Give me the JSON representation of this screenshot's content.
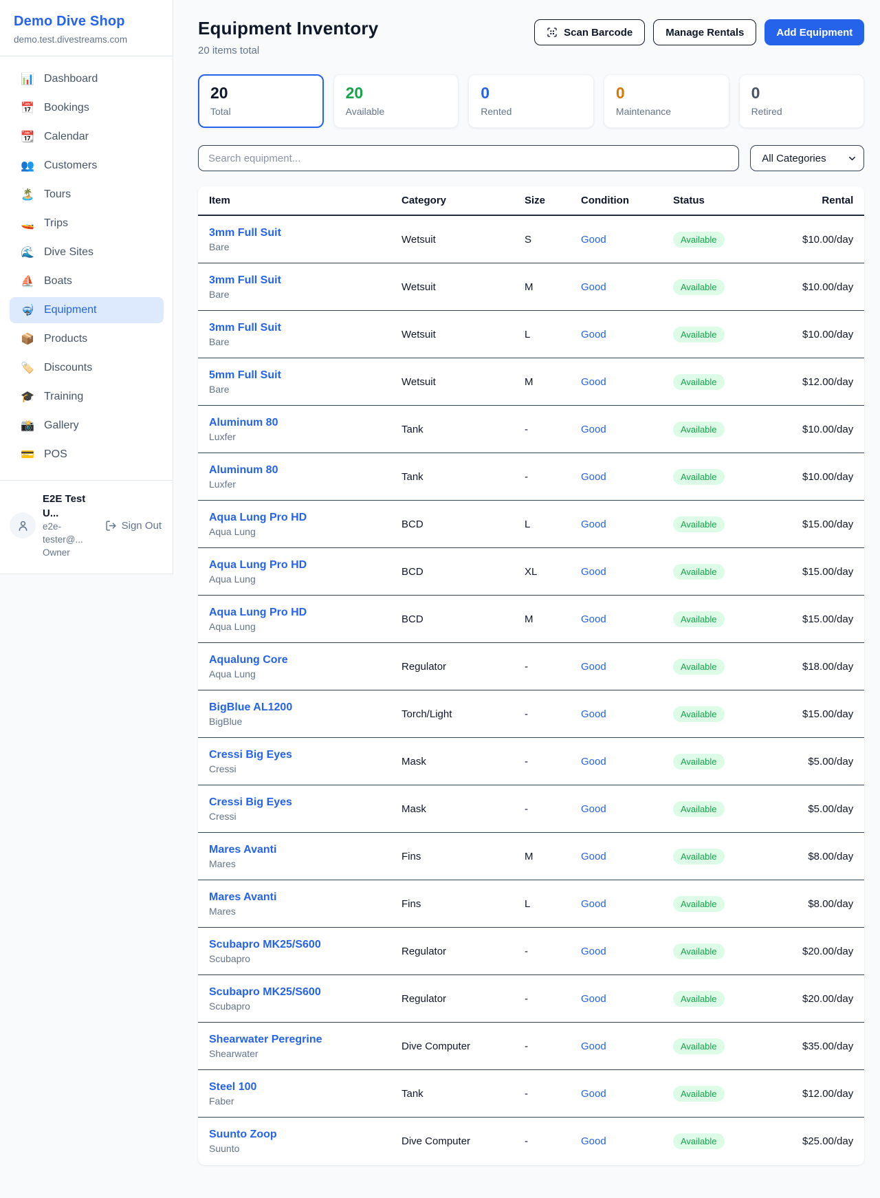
{
  "colors": {
    "accent_blue": "#2563eb",
    "active_item_bg": "#ddeafd",
    "green": "#16a34a",
    "green_badge_bg": "#dcfce7",
    "orange": "#d97706",
    "gray": "#64748b",
    "dark": "#0f172a",
    "page_bg": "#f8fafc"
  },
  "brand": {
    "name": "Demo Dive Shop",
    "domain": "demo.test.divestreams.com"
  },
  "sidebar": {
    "items": [
      {
        "label": "Dashboard",
        "icon_name": "bar-chart-icon",
        "icon_glyph": "📊",
        "active": false
      },
      {
        "label": "Bookings",
        "icon_name": "calendar-date-icon",
        "icon_glyph": "📅",
        "active": false
      },
      {
        "label": "Calendar",
        "icon_name": "tear-off-calendar-icon",
        "icon_glyph": "📆",
        "active": false
      },
      {
        "label": "Customers",
        "icon_name": "people-icon",
        "icon_glyph": "👥",
        "active": false
      },
      {
        "label": "Tours",
        "icon_name": "island-icon",
        "icon_glyph": "🏝️",
        "active": false
      },
      {
        "label": "Trips",
        "icon_name": "speedboat-icon",
        "icon_glyph": "🚤",
        "active": false
      },
      {
        "label": "Dive Sites",
        "icon_name": "wave-icon",
        "icon_glyph": "🌊",
        "active": false
      },
      {
        "label": "Boats",
        "icon_name": "sailboat-icon",
        "icon_glyph": "⛵",
        "active": false
      },
      {
        "label": "Equipment",
        "icon_name": "diving-mask-icon",
        "icon_glyph": "🤿",
        "active": true
      },
      {
        "label": "Products",
        "icon_name": "package-icon",
        "icon_glyph": "📦",
        "active": false
      },
      {
        "label": "Discounts",
        "icon_name": "tag-icon",
        "icon_glyph": "🏷️",
        "active": false
      },
      {
        "label": "Training",
        "icon_name": "graduation-cap-icon",
        "icon_glyph": "🎓",
        "active": false
      },
      {
        "label": "Gallery",
        "icon_name": "camera-icon",
        "icon_glyph": "📸",
        "active": false
      },
      {
        "label": "POS",
        "icon_name": "credit-card-icon",
        "icon_glyph": "💳",
        "active": false
      }
    ]
  },
  "user": {
    "name": "E2E Test U...",
    "email": "e2e-tester@...",
    "role": "Owner",
    "sign_out_label": "Sign Out"
  },
  "header": {
    "title": "Equipment Inventory",
    "subtitle": "20 items total",
    "scan_barcode_label": "Scan Barcode",
    "manage_rentals_label": "Manage Rentals",
    "add_equipment_label": "Add Equipment"
  },
  "stats": {
    "cards": [
      {
        "value": "20",
        "label": "Total",
        "color": "#0f172a",
        "selected": true
      },
      {
        "value": "20",
        "label": "Available",
        "color": "#16a34a",
        "selected": false
      },
      {
        "value": "0",
        "label": "Rented",
        "color": "#2563eb",
        "selected": false
      },
      {
        "value": "0",
        "label": "Maintenance",
        "color": "#d97706",
        "selected": false
      },
      {
        "value": "0",
        "label": "Retired",
        "color": "#475569",
        "selected": false
      }
    ]
  },
  "filters": {
    "search_placeholder": "Search equipment...",
    "category_selected": "All Categories"
  },
  "table": {
    "columns": [
      "Item",
      "Category",
      "Size",
      "Condition",
      "Status",
      "Rental"
    ],
    "rows": [
      {
        "name": "3mm Full Suit",
        "brand": "Bare",
        "category": "Wetsuit",
        "size": "S",
        "condition": "Good",
        "status": "Available",
        "rental": "$10.00/day"
      },
      {
        "name": "3mm Full Suit",
        "brand": "Bare",
        "category": "Wetsuit",
        "size": "M",
        "condition": "Good",
        "status": "Available",
        "rental": "$10.00/day"
      },
      {
        "name": "3mm Full Suit",
        "brand": "Bare",
        "category": "Wetsuit",
        "size": "L",
        "condition": "Good",
        "status": "Available",
        "rental": "$10.00/day"
      },
      {
        "name": "5mm Full Suit",
        "brand": "Bare",
        "category": "Wetsuit",
        "size": "M",
        "condition": "Good",
        "status": "Available",
        "rental": "$12.00/day"
      },
      {
        "name": "Aluminum 80",
        "brand": "Luxfer",
        "category": "Tank",
        "size": "-",
        "condition": "Good",
        "status": "Available",
        "rental": "$10.00/day"
      },
      {
        "name": "Aluminum 80",
        "brand": "Luxfer",
        "category": "Tank",
        "size": "-",
        "condition": "Good",
        "status": "Available",
        "rental": "$10.00/day"
      },
      {
        "name": "Aqua Lung Pro HD",
        "brand": "Aqua Lung",
        "category": "BCD",
        "size": "L",
        "condition": "Good",
        "status": "Available",
        "rental": "$15.00/day"
      },
      {
        "name": "Aqua Lung Pro HD",
        "brand": "Aqua Lung",
        "category": "BCD",
        "size": "XL",
        "condition": "Good",
        "status": "Available",
        "rental": "$15.00/day"
      },
      {
        "name": "Aqua Lung Pro HD",
        "brand": "Aqua Lung",
        "category": "BCD",
        "size": "M",
        "condition": "Good",
        "status": "Available",
        "rental": "$15.00/day"
      },
      {
        "name": "Aqualung Core",
        "brand": "Aqua Lung",
        "category": "Regulator",
        "size": "-",
        "condition": "Good",
        "status": "Available",
        "rental": "$18.00/day"
      },
      {
        "name": "BigBlue AL1200",
        "brand": "BigBlue",
        "category": "Torch/Light",
        "size": "-",
        "condition": "Good",
        "status": "Available",
        "rental": "$15.00/day"
      },
      {
        "name": "Cressi Big Eyes",
        "brand": "Cressi",
        "category": "Mask",
        "size": "-",
        "condition": "Good",
        "status": "Available",
        "rental": "$5.00/day"
      },
      {
        "name": "Cressi Big Eyes",
        "brand": "Cressi",
        "category": "Mask",
        "size": "-",
        "condition": "Good",
        "status": "Available",
        "rental": "$5.00/day"
      },
      {
        "name": "Mares Avanti",
        "brand": "Mares",
        "category": "Fins",
        "size": "M",
        "condition": "Good",
        "status": "Available",
        "rental": "$8.00/day"
      },
      {
        "name": "Mares Avanti",
        "brand": "Mares",
        "category": "Fins",
        "size": "L",
        "condition": "Good",
        "status": "Available",
        "rental": "$8.00/day"
      },
      {
        "name": "Scubapro MK25/S600",
        "brand": "Scubapro",
        "category": "Regulator",
        "size": "-",
        "condition": "Good",
        "status": "Available",
        "rental": "$20.00/day"
      },
      {
        "name": "Scubapro MK25/S600",
        "brand": "Scubapro",
        "category": "Regulator",
        "size": "-",
        "condition": "Good",
        "status": "Available",
        "rental": "$20.00/day"
      },
      {
        "name": "Shearwater Peregrine",
        "brand": "Shearwater",
        "category": "Dive Computer",
        "size": "-",
        "condition": "Good",
        "status": "Available",
        "rental": "$35.00/day"
      },
      {
        "name": "Steel 100",
        "brand": "Faber",
        "category": "Tank",
        "size": "-",
        "condition": "Good",
        "status": "Available",
        "rental": "$12.00/day"
      },
      {
        "name": "Suunto Zoop",
        "brand": "Suunto",
        "category": "Dive Computer",
        "size": "-",
        "condition": "Good",
        "status": "Available",
        "rental": "$25.00/day"
      }
    ]
  }
}
